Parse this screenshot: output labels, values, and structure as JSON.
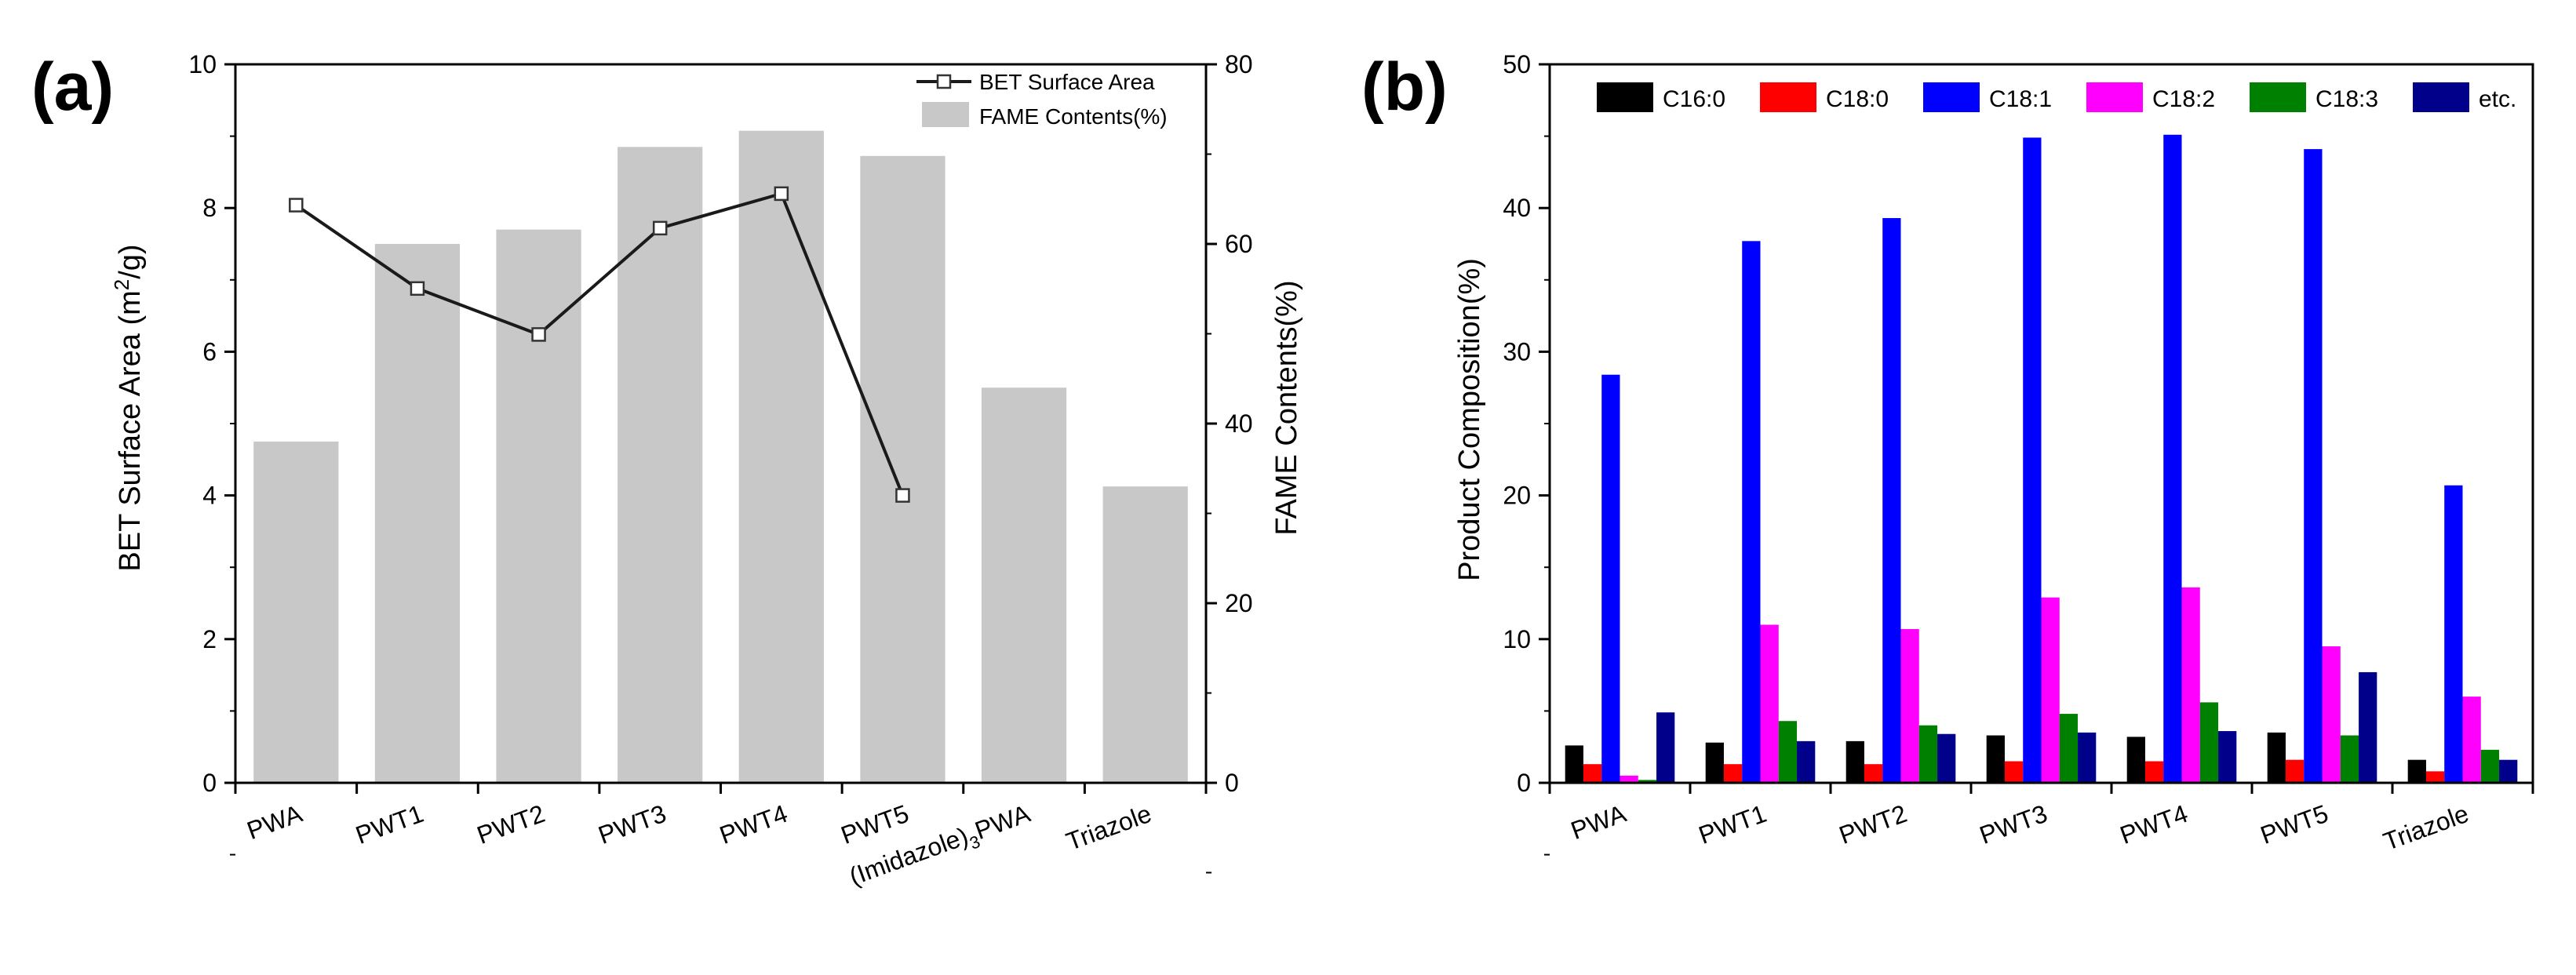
{
  "chart_data": [
    {
      "panel_label": "(a)",
      "type": "bar+line",
      "categories": [
        "PWA",
        "PWT1",
        "PWT2",
        "PWT3",
        "PWT4",
        "PWT5",
        "(Imidazole)",
        "Triazole"
      ],
      "category_subscript": {
        "6": "3"
      },
      "category_suffix": {
        "6": "PWA"
      },
      "ylabel_left": "BET Surface Area (m",
      "ylabel_left_sup": "2",
      "ylabel_left_tail": "/g)",
      "ylabel_right": "FAME Contents(%)",
      "ylim_left": [
        0,
        10
      ],
      "ylim_right": [
        0,
        80
      ],
      "yticks_left": [
        "0",
        "2",
        "4",
        "6",
        "8",
        "10"
      ],
      "yticks_right": [
        "0",
        "20",
        "40",
        "60",
        "80"
      ],
      "legend": [
        "BET Surface Area",
        "FAME Contents(%)"
      ],
      "legend_position": "top-right",
      "series": [
        {
          "name": "FAME Contents(%)",
          "kind": "bar",
          "axis": "right",
          "color": "#c8c8c8",
          "values": [
            38,
            60,
            61.6,
            70.8,
            72.6,
            69.8,
            44,
            33
          ]
        },
        {
          "name": "BET Surface Area",
          "kind": "line",
          "axis": "left",
          "color": "#1a1a1a",
          "values": [
            8.04,
            6.88,
            6.24,
            7.72,
            8.2,
            4.0,
            null,
            null
          ]
        }
      ]
    },
    {
      "panel_label": "(b)",
      "type": "bar",
      "categories": [
        "PWA",
        "PWT1",
        "PWT2",
        "PWT3",
        "PWT4",
        "PWT5",
        "Triazole"
      ],
      "ylabel": "Product Composition(%)",
      "ylim": [
        0,
        50
      ],
      "yticks": [
        "0",
        "10",
        "20",
        "30",
        "40",
        "50"
      ],
      "legend_position": "top",
      "series": [
        {
          "name": "C16:0",
          "color": "#000000",
          "values": [
            2.6,
            2.8,
            2.9,
            3.3,
            3.2,
            3.5,
            1.6
          ]
        },
        {
          "name": "C18:0",
          "color": "#ff0000",
          "values": [
            1.3,
            1.3,
            1.3,
            1.5,
            1.5,
            1.6,
            0.8
          ]
        },
        {
          "name": "C18:1",
          "color": "#0000ff",
          "values": [
            28.4,
            37.7,
            39.3,
            44.9,
            45.1,
            44.1,
            20.7
          ]
        },
        {
          "name": "C18:2",
          "color": "#ff00ff",
          "values": [
            0.5,
            11.0,
            10.7,
            12.9,
            13.6,
            9.5,
            6.0
          ]
        },
        {
          "name": "C18:3",
          "color": "#008000",
          "values": [
            0.2,
            4.3,
            4.0,
            4.8,
            5.6,
            3.3,
            2.3
          ]
        },
        {
          "name": "etc.",
          "color": "#00008b",
          "values": [
            4.9,
            2.9,
            3.4,
            3.5,
            3.6,
            7.7,
            1.6
          ]
        }
      ]
    }
  ]
}
